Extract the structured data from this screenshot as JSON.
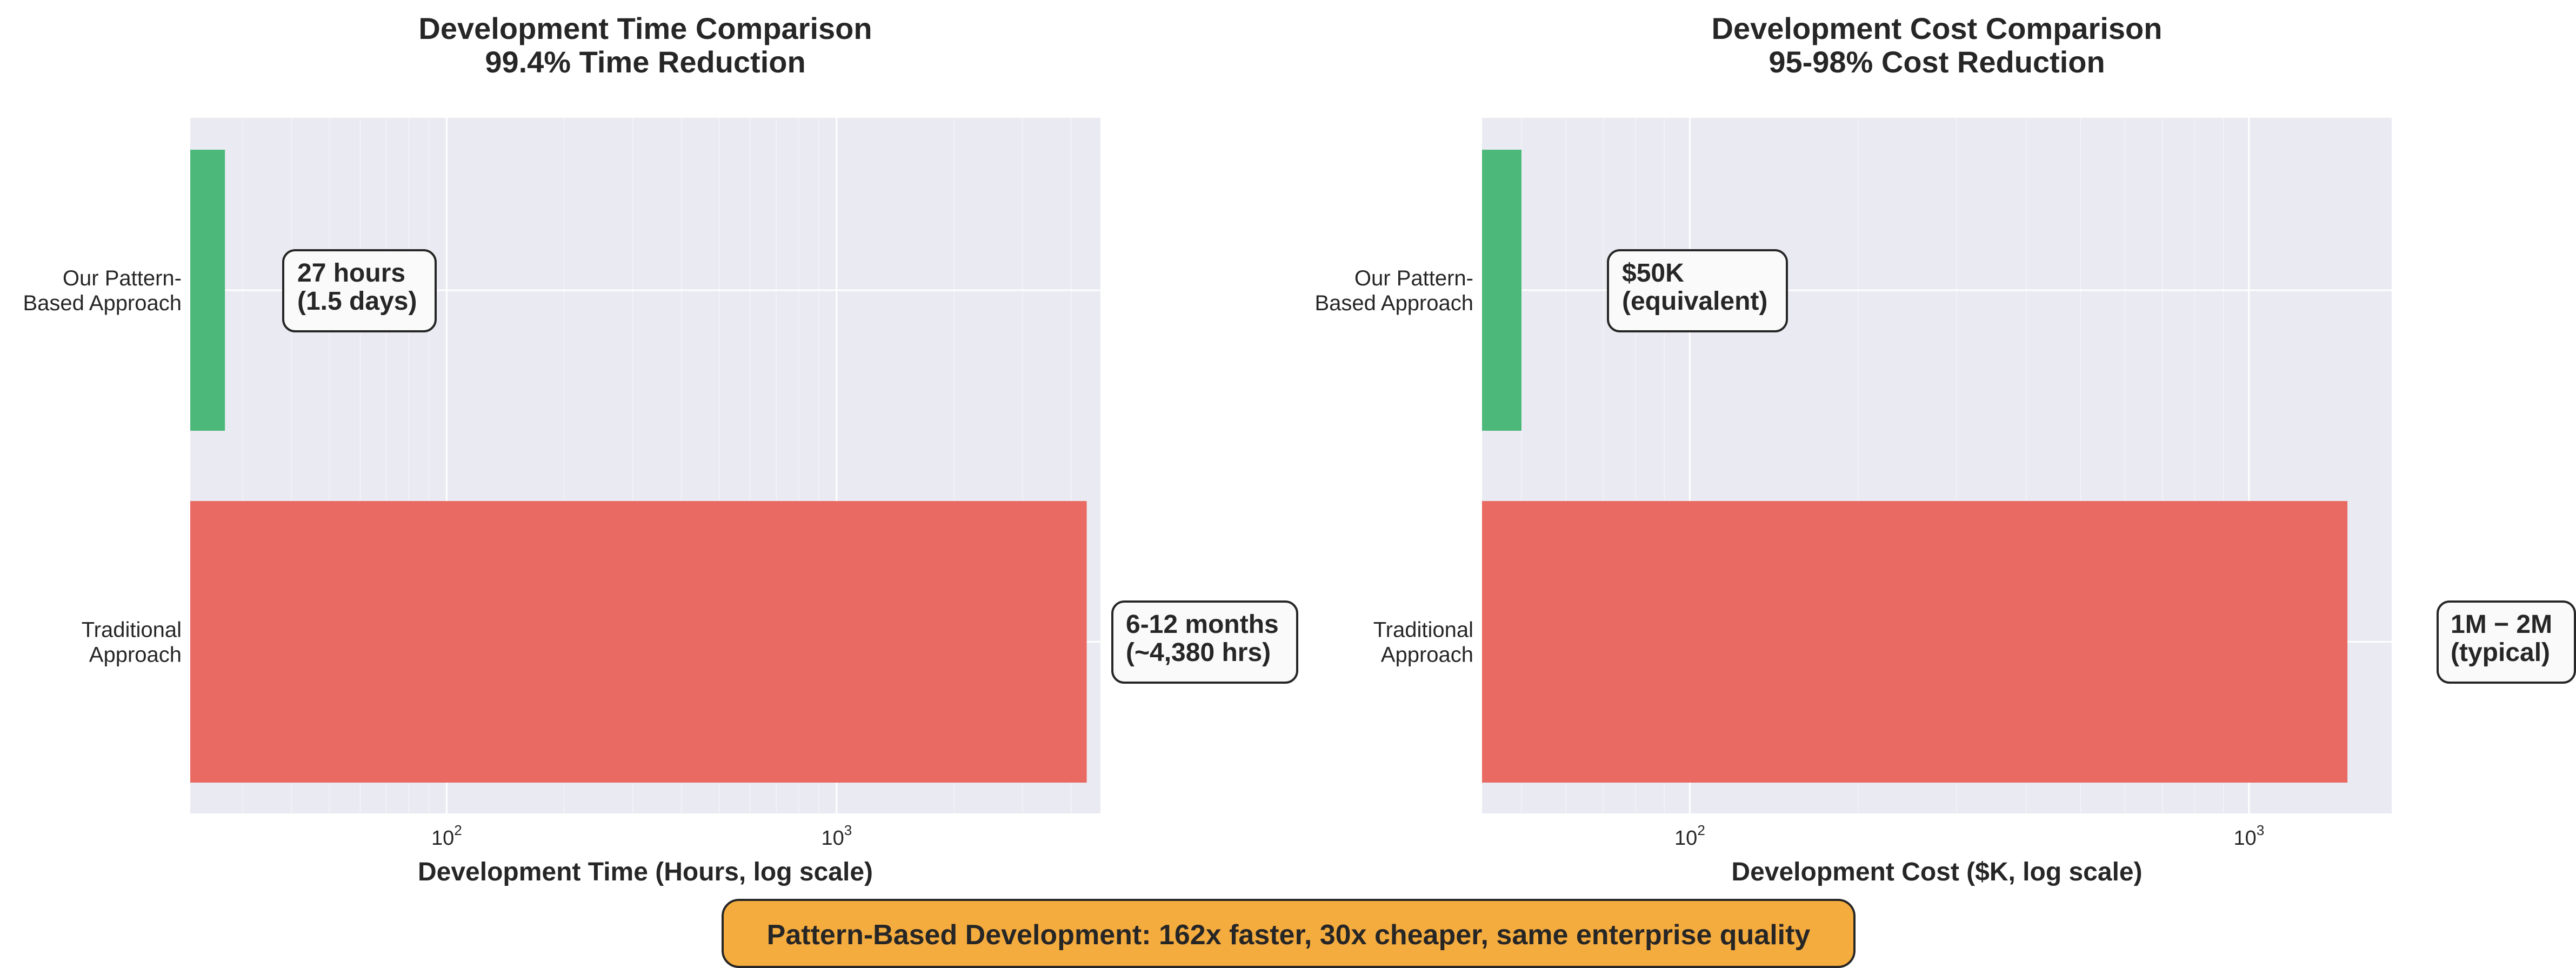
{
  "colors": {
    "plot_bg": "#EAEAF2",
    "grid": "#FFFFFF",
    "pattern_bar": "#4CB87A",
    "traditional_bar": "#E86A62",
    "annotation_bg": "#FAFAFA",
    "annotation_border": "#262626",
    "banner_bg": "#F5AC3F",
    "text": "#262626"
  },
  "chart_data": [
    {
      "type": "bar",
      "orientation": "horizontal",
      "title_lines": [
        "Development Time Comparison",
        "99.4% Time Reduction"
      ],
      "xlabel": "Development Time (Hours, log scale)",
      "ylabel": "",
      "xscale": "log",
      "xlim": [
        22,
        4750
      ],
      "x_ticks": [
        {
          "value": 100,
          "base": "10",
          "exp": "2"
        },
        {
          "value": 1000,
          "base": "10",
          "exp": "3"
        }
      ],
      "grid": true,
      "categories": [
        {
          "lines": [
            "Our Pattern-",
            "Based Approach"
          ]
        },
        {
          "lines": [
            "Traditional",
            "Approach"
          ]
        }
      ],
      "values": [
        27,
        4380
      ],
      "bar_colors": [
        "#4CB87A",
        "#E86A62"
      ],
      "annotations": [
        {
          "lines": [
            "27 hours",
            "(1.5 days)"
          ],
          "bar": 0
        },
        {
          "lines": [
            "6-12 months",
            "(~4,380 hrs)"
          ],
          "bar": 1
        }
      ]
    },
    {
      "type": "bar",
      "orientation": "horizontal",
      "title_lines": [
        "Development Cost Comparison",
        "95-98% Cost Reduction"
      ],
      "xlabel": "Development Cost ($K, log scale)",
      "ylabel": "",
      "xscale": "log",
      "xlim": [
        42.5,
        1800
      ],
      "x_ticks": [
        {
          "value": 100,
          "base": "10",
          "exp": "2"
        },
        {
          "value": 1000,
          "base": "10",
          "exp": "3"
        }
      ],
      "grid": true,
      "categories": [
        {
          "lines": [
            "Our Pattern-",
            "Based Approach"
          ]
        },
        {
          "lines": [
            "Traditional",
            "Approach"
          ]
        }
      ],
      "values": [
        50,
        1500
      ],
      "bar_colors": [
        "#4CB87A",
        "#E86A62"
      ],
      "annotations": [
        {
          "lines": [
            "$50K",
            "(equivalent)"
          ],
          "bar": 0
        },
        {
          "lines": [
            "1M − 2M",
            "(typical)"
          ],
          "bar": 1
        }
      ]
    }
  ],
  "banner": {
    "text": "Pattern-Based Development: 162x faster, 30x cheaper, same enterprise quality"
  }
}
